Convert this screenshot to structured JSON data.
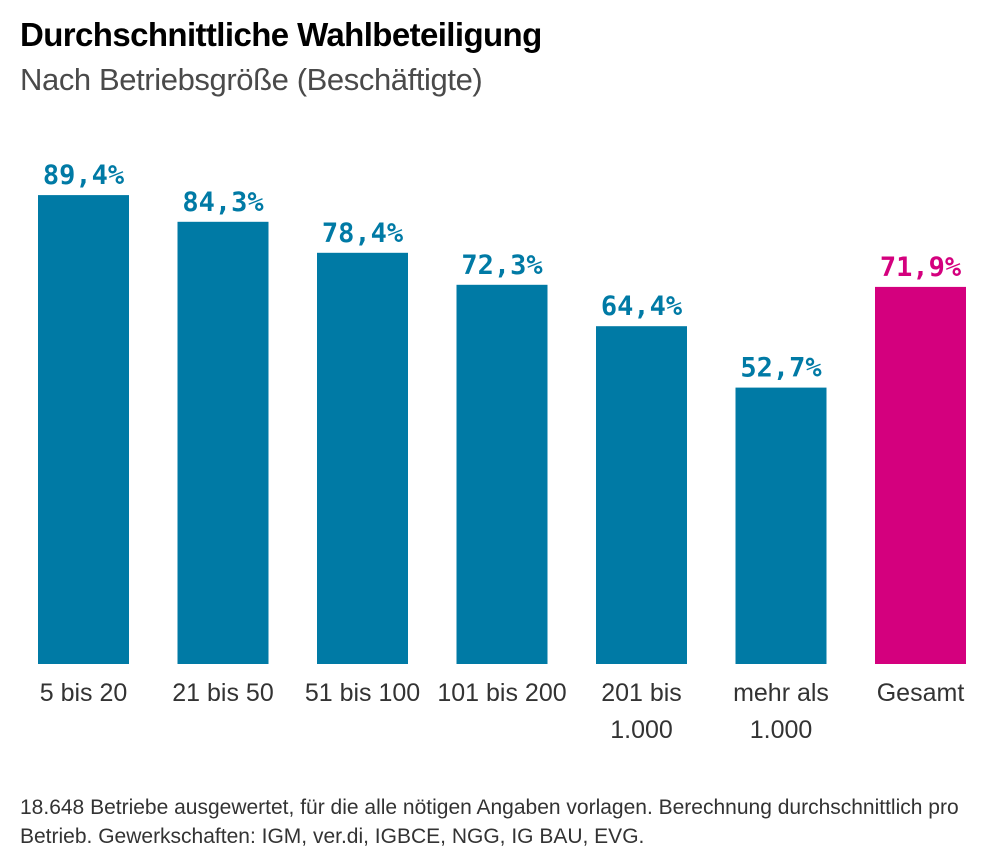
{
  "chart_data": {
    "type": "bar",
    "title": "Durchschnittliche Wahlbeteiligung",
    "subtitle": "Nach Betriebsgröße (Beschäftigte)",
    "categories": [
      [
        "5 bis 20"
      ],
      [
        "21 bis 50"
      ],
      [
        "51 bis 100"
      ],
      [
        "101 bis 200"
      ],
      [
        "201 bis",
        "1.000"
      ],
      [
        "mehr als",
        "1.000"
      ],
      [
        "Gesamt"
      ]
    ],
    "values": [
      89.4,
      84.3,
      78.4,
      72.3,
      64.4,
      52.7,
      71.9
    ],
    "value_labels": [
      "89,4%",
      "84,3%",
      "78,4%",
      "72,3%",
      "64,4%",
      "52,7%",
      "71,9%"
    ],
    "bar_colors": [
      "#007aa5",
      "#007aa5",
      "#007aa5",
      "#007aa5",
      "#007aa5",
      "#007aa5",
      "#d4007e"
    ],
    "ylim": [
      0,
      100
    ],
    "grid": false,
    "legend": "none"
  },
  "footnote": "18.648 Betriebe ausgewertet, für die alle nötigen Angaben vorlagen. Berechnung durchschnittlich pro Betrieb. Gewerkschaften: IGM, ver.di, IGBCE, NGG, IG BAU, EVG."
}
